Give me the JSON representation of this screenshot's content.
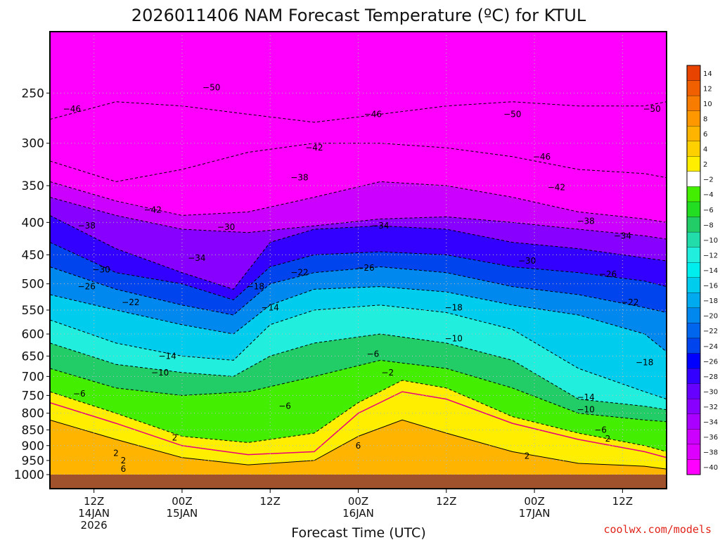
{
  "chart_data": {
    "type": "heatmap",
    "title": "2026011406 NAM Forecast Temperature (ºC) for KTUL",
    "xlabel": "Forecast Time (UTC)",
    "ylabel": "",
    "y_scale": "log-pressure",
    "y_ticks": [
      250,
      300,
      350,
      400,
      450,
      500,
      550,
      600,
      650,
      700,
      750,
      800,
      850,
      900,
      950,
      1000
    ],
    "x_ticks": [
      {
        "line1": "12Z",
        "line2": "14JAN",
        "line3": "2026"
      },
      {
        "line1": "00Z",
        "line2": "15JAN",
        "line3": ""
      },
      {
        "line1": "12Z",
        "line2": "",
        "line3": ""
      },
      {
        "line1": "00Z",
        "line2": "16JAN",
        "line3": ""
      },
      {
        "line1": "12Z",
        "line2": "",
        "line3": ""
      },
      {
        "line1": "00Z",
        "line2": "17JAN",
        "line3": ""
      },
      {
        "line1": "12Z",
        "line2": "",
        "line3": ""
      }
    ],
    "x_range_hours": [
      -6,
      78
    ],
    "y_range_hpa": [
      200,
      1000
    ],
    "grid": true,
    "colorbar": {
      "levels": [
        14,
        12,
        10,
        8,
        6,
        4,
        2,
        -2,
        -4,
        -6,
        -8,
        -10,
        -12,
        -14,
        -16,
        -18,
        -20,
        -22,
        -24,
        -26,
        -28,
        -30,
        -32,
        -34,
        -36,
        -38,
        -40
      ],
      "colors": [
        "#e84400",
        "#f06000",
        "#f87c00",
        "#ff9800",
        "#ffb400",
        "#ffd000",
        "#ffee00",
        "#ffffff",
        "#44ee00",
        "#22dd22",
        "#22cc66",
        "#22ddaa",
        "#22eedd",
        "#00eeee",
        "#00ccee",
        "#00aaee",
        "#0088ee",
        "#0066ee",
        "#0044ee",
        "#0000ff",
        "#3300ff",
        "#6600ff",
        "#8800ff",
        "#aa00ff",
        "#cc00ff",
        "#dd00ff",
        "#ff00ff"
      ]
    },
    "series": [
      {
        "temp": -46,
        "points": [
          [
            -6,
            275
          ],
          [
            3,
            258
          ],
          [
            12,
            262
          ],
          [
            21,
            270
          ],
          [
            30,
            278
          ],
          [
            39,
            270
          ],
          [
            48,
            262
          ],
          [
            57,
            258
          ],
          [
            66,
            262
          ],
          [
            75,
            262
          ],
          [
            78,
            258
          ]
        ]
      },
      {
        "temp": -42,
        "points": [
          [
            -6,
            320
          ],
          [
            3,
            345
          ],
          [
            12,
            330
          ],
          [
            21,
            310
          ],
          [
            30,
            300
          ],
          [
            39,
            300
          ],
          [
            48,
            305
          ],
          [
            57,
            315
          ],
          [
            66,
            330
          ],
          [
            75,
            335
          ],
          [
            78,
            340
          ]
        ]
      },
      {
        "temp": -38,
        "points": [
          [
            -6,
            345
          ],
          [
            3,
            370
          ],
          [
            12,
            390
          ],
          [
            21,
            385
          ],
          [
            30,
            365
          ],
          [
            39,
            345
          ],
          [
            48,
            350
          ],
          [
            57,
            365
          ],
          [
            66,
            385
          ],
          [
            75,
            395
          ],
          [
            78,
            400
          ]
        ]
      },
      {
        "temp": -34,
        "points": [
          [
            -6,
            365
          ],
          [
            3,
            390
          ],
          [
            12,
            410
          ],
          [
            21,
            415
          ],
          [
            30,
            405
          ],
          [
            39,
            395
          ],
          [
            48,
            392
          ],
          [
            57,
            400
          ],
          [
            66,
            410
          ],
          [
            75,
            420
          ],
          [
            78,
            425
          ]
        ]
      },
      {
        "temp": -30,
        "points": [
          [
            -6,
            390
          ],
          [
            3,
            440
          ],
          [
            12,
            480
          ],
          [
            19,
            510
          ],
          [
            24,
            430
          ],
          [
            30,
            410
          ],
          [
            39,
            405
          ],
          [
            48,
            410
          ],
          [
            57,
            430
          ],
          [
            66,
            440
          ],
          [
            75,
            455
          ],
          [
            78,
            460
          ]
        ]
      },
      {
        "temp": -26,
        "points": [
          [
            -6,
            430
          ],
          [
            3,
            480
          ],
          [
            12,
            500
          ],
          [
            19,
            530
          ],
          [
            24,
            470
          ],
          [
            30,
            450
          ],
          [
            39,
            445
          ],
          [
            48,
            450
          ],
          [
            57,
            470
          ],
          [
            66,
            480
          ],
          [
            75,
            495
          ],
          [
            78,
            505
          ]
        ]
      },
      {
        "temp": -22,
        "points": [
          [
            -6,
            470
          ],
          [
            3,
            510
          ],
          [
            12,
            540
          ],
          [
            19,
            560
          ],
          [
            24,
            500
          ],
          [
            30,
            480
          ],
          [
            39,
            470
          ],
          [
            48,
            480
          ],
          [
            57,
            505
          ],
          [
            66,
            520
          ],
          [
            75,
            545
          ],
          [
            78,
            555
          ]
        ]
      },
      {
        "temp": -18,
        "points": [
          [
            -6,
            520
          ],
          [
            3,
            550
          ],
          [
            12,
            580
          ],
          [
            19,
            600
          ],
          [
            24,
            540
          ],
          [
            30,
            510
          ],
          [
            39,
            505
          ],
          [
            48,
            515
          ],
          [
            57,
            540
          ],
          [
            66,
            560
          ],
          [
            75,
            600
          ],
          [
            78,
            640
          ]
        ]
      },
      {
        "temp": -14,
        "points": [
          [
            -6,
            570
          ],
          [
            3,
            620
          ],
          [
            12,
            650
          ],
          [
            19,
            660
          ],
          [
            24,
            580
          ],
          [
            30,
            550
          ],
          [
            39,
            540
          ],
          [
            48,
            555
          ],
          [
            57,
            590
          ],
          [
            66,
            680
          ],
          [
            75,
            740
          ],
          [
            78,
            760
          ]
        ]
      },
      {
        "temp": -10,
        "points": [
          [
            -6,
            620
          ],
          [
            3,
            670
          ],
          [
            12,
            690
          ],
          [
            19,
            700
          ],
          [
            24,
            650
          ],
          [
            30,
            620
          ],
          [
            39,
            600
          ],
          [
            48,
            620
          ],
          [
            57,
            660
          ],
          [
            66,
            760
          ],
          [
            75,
            780
          ],
          [
            78,
            790
          ]
        ]
      },
      {
        "temp": -6,
        "points": [
          [
            -6,
            680
          ],
          [
            3,
            730
          ],
          [
            12,
            750
          ],
          [
            21,
            740
          ],
          [
            30,
            700
          ],
          [
            39,
            660
          ],
          [
            48,
            680
          ],
          [
            57,
            730
          ],
          [
            66,
            800
          ],
          [
            75,
            820
          ],
          [
            78,
            825
          ]
        ]
      },
      {
        "temp": -2,
        "points": [
          [
            -6,
            740
          ],
          [
            3,
            800
          ],
          [
            12,
            870
          ],
          [
            21,
            890
          ],
          [
            30,
            860
          ],
          [
            36,
            770
          ],
          [
            42,
            710
          ],
          [
            48,
            730
          ],
          [
            57,
            810
          ],
          [
            66,
            860
          ],
          [
            75,
            900
          ],
          [
            78,
            920
          ]
        ]
      },
      {
        "temp": 2,
        "points": [
          [
            -6,
            770
          ],
          [
            3,
            830
          ],
          [
            12,
            900
          ],
          [
            21,
            930
          ],
          [
            30,
            920
          ],
          [
            36,
            800
          ],
          [
            42,
            740
          ],
          [
            48,
            760
          ],
          [
            57,
            830
          ],
          [
            66,
            880
          ],
          [
            75,
            920
          ],
          [
            78,
            940
          ]
        ]
      },
      {
        "temp": 6,
        "points": [
          [
            -6,
            820
          ],
          [
            3,
            880
          ],
          [
            12,
            940
          ],
          [
            21,
            965
          ],
          [
            30,
            950
          ],
          [
            36,
            870
          ],
          [
            42,
            820
          ],
          [
            48,
            860
          ],
          [
            57,
            920
          ],
          [
            66,
            960
          ],
          [
            75,
            970
          ],
          [
            78,
            980
          ]
        ]
      }
    ],
    "contour_labels": [
      {
        "text": "-50",
        "x": 16,
        "p": 245
      },
      {
        "text": "-46",
        "x": -3,
        "p": 265
      },
      {
        "text": "-46",
        "x": 38,
        "p": 270
      },
      {
        "text": "-50",
        "x": 57,
        "p": 270
      },
      {
        "text": "-50",
        "x": 76,
        "p": 265
      },
      {
        "text": "-42",
        "x": 30,
        "p": 305
      },
      {
        "text": "-46",
        "x": 61,
        "p": 315
      },
      {
        "text": "-38",
        "x": 28,
        "p": 340
      },
      {
        "text": "-42",
        "x": 63,
        "p": 352
      },
      {
        "text": "-42",
        "x": 8,
        "p": 382
      },
      {
        "text": "-38",
        "x": -1,
        "p": 405
      },
      {
        "text": "-30",
        "x": 18,
        "p": 407
      },
      {
        "text": "-34",
        "x": 39,
        "p": 405
      },
      {
        "text": "-38",
        "x": 67,
        "p": 398
      },
      {
        "text": "-34",
        "x": 72,
        "p": 420
      },
      {
        "text": "-34",
        "x": 14,
        "p": 455
      },
      {
        "text": "-30",
        "x": 1,
        "p": 475
      },
      {
        "text": "-30",
        "x": 59,
        "p": 460
      },
      {
        "text": "-26",
        "x": 37,
        "p": 472
      },
      {
        "text": "-22",
        "x": 28,
        "p": 480
      },
      {
        "text": "-26",
        "x": 70,
        "p": 483
      },
      {
        "text": "-26",
        "x": -1,
        "p": 505
      },
      {
        "text": "-18",
        "x": 22,
        "p": 505
      },
      {
        "text": "-22",
        "x": 5,
        "p": 535
      },
      {
        "text": "-22",
        "x": 73,
        "p": 535
      },
      {
        "text": "-14",
        "x": 24,
        "p": 545
      },
      {
        "text": "-18",
        "x": 49,
        "p": 545
      },
      {
        "text": "-10",
        "x": 49,
        "p": 610
      },
      {
        "text": "-6",
        "x": 38,
        "p": 645
      },
      {
        "text": "-14",
        "x": 10,
        "p": 650
      },
      {
        "text": "-18",
        "x": 75,
        "p": 665
      },
      {
        "text": "-2",
        "x": 40,
        "p": 690
      },
      {
        "text": "-10",
        "x": 9,
        "p": 690
      },
      {
        "text": "-14",
        "x": 67,
        "p": 755
      },
      {
        "text": "-6",
        "x": -2,
        "p": 745
      },
      {
        "text": "-6",
        "x": 26,
        "p": 780
      },
      {
        "text": "-10",
        "x": 67,
        "p": 790
      },
      {
        "text": "-6",
        "x": 69,
        "p": 850
      },
      {
        "text": "2",
        "x": 11,
        "p": 875
      },
      {
        "text": "2",
        "x": 70,
        "p": 878
      },
      {
        "text": "6",
        "x": 36,
        "p": 900
      },
      {
        "text": "2",
        "x": 3,
        "p": 925
      },
      {
        "text": "2",
        "x": 59,
        "p": 935
      },
      {
        "text": "2",
        "x": 4,
        "p": 950
      },
      {
        "text": "6",
        "x": 4,
        "p": 980
      }
    ]
  },
  "credit": "coolwx.com/models"
}
